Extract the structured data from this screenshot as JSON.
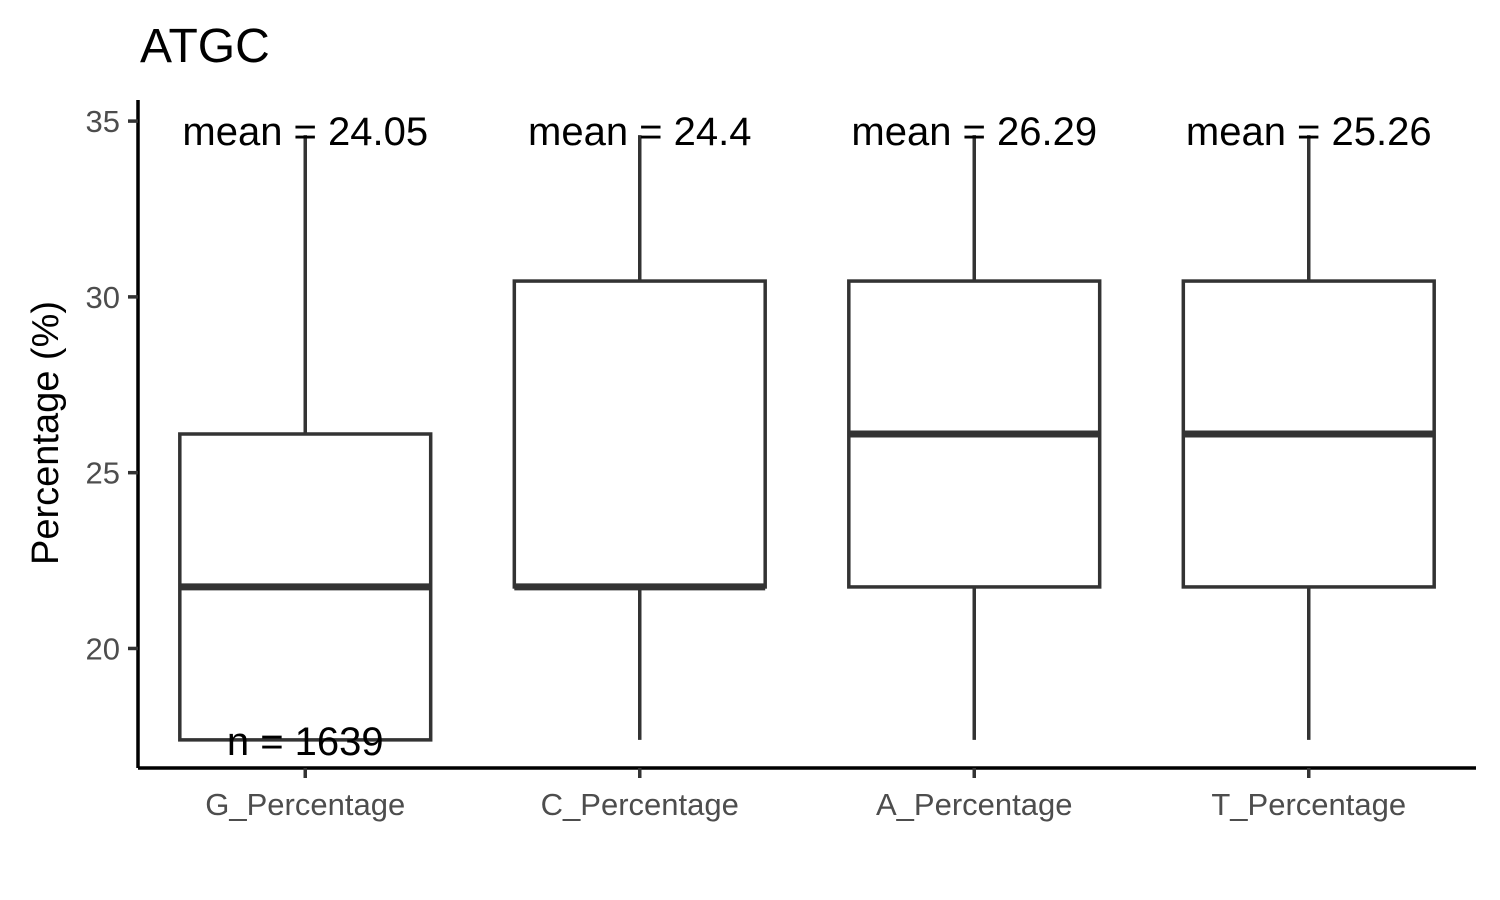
{
  "chart_data": {
    "type": "boxplot",
    "title": "ATGC",
    "xlabel": "",
    "ylabel": "Percentage (%)",
    "ylim": [
      16.6,
      35.6
    ],
    "yticks": [
      20,
      25,
      30,
      35
    ],
    "ytick_labels": [
      "20",
      "25",
      "30",
      "35"
    ],
    "grid": false,
    "legend": "none",
    "categories": [
      "G_Percentage",
      "C_Percentage",
      "A_Percentage",
      "T_Percentage"
    ],
    "boxes": [
      {
        "category": "G_Percentage",
        "whisker_low": 17.4,
        "q1": 17.4,
        "median": 21.75,
        "q3": 26.1,
        "whisker_high": 34.6,
        "mean_label": "mean = 24.05"
      },
      {
        "category": "C_Percentage",
        "whisker_low": 17.4,
        "q1": 21.75,
        "median": 21.75,
        "q3": 30.45,
        "whisker_high": 34.6,
        "mean_label": "mean = 24.4"
      },
      {
        "category": "A_Percentage",
        "whisker_low": 17.4,
        "q1": 21.75,
        "median": 26.1,
        "q3": 30.45,
        "whisker_high": 34.6,
        "mean_label": "mean = 26.29"
      },
      {
        "category": "T_Percentage",
        "whisker_low": 17.4,
        "q1": 21.75,
        "median": 26.1,
        "q3": 30.45,
        "whisker_high": 34.6,
        "mean_label": "mean = 25.26"
      }
    ],
    "annotations": [
      {
        "text": "n = 1639",
        "category": "G_Percentage",
        "y": 17.4
      }
    ],
    "colors": {
      "box_stroke": "#333333",
      "box_fill": "#ffffff",
      "tick_text": "#4d4d4d"
    }
  }
}
